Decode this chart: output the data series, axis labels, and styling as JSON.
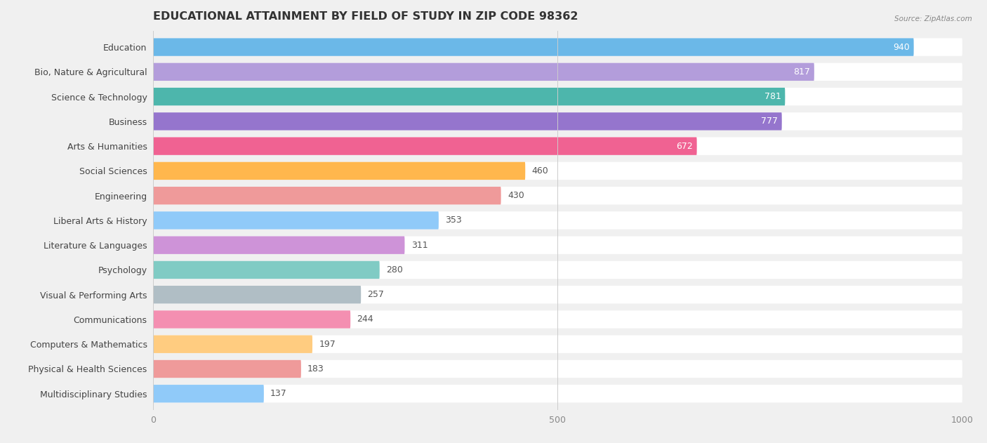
{
  "title": "EDUCATIONAL ATTAINMENT BY FIELD OF STUDY IN ZIP CODE 98362",
  "source": "Source: ZipAtlas.com",
  "categories": [
    "Education",
    "Bio, Nature & Agricultural",
    "Science & Technology",
    "Business",
    "Arts & Humanities",
    "Social Sciences",
    "Engineering",
    "Liberal Arts & History",
    "Literature & Languages",
    "Psychology",
    "Visual & Performing Arts",
    "Communications",
    "Computers & Mathematics",
    "Physical & Health Sciences",
    "Multidisciplinary Studies"
  ],
  "values": [
    940,
    817,
    781,
    777,
    672,
    460,
    430,
    353,
    311,
    280,
    257,
    244,
    197,
    183,
    137
  ],
  "bar_colors": [
    "#6bb8e8",
    "#b39ddb",
    "#4db6ac",
    "#9575cd",
    "#f06292",
    "#ffb74d",
    "#ef9a9a",
    "#90caf9",
    "#ce93d8",
    "#80cbc4",
    "#b0bec5",
    "#f48fb1",
    "#ffcc80",
    "#ef9a9a",
    "#90caf9"
  ],
  "xlim": [
    0,
    1000
  ],
  "xticks": [
    0,
    500,
    1000
  ],
  "background_color": "#f0f0f0",
  "bar_row_color": "#ffffff",
  "title_fontsize": 11.5,
  "label_fontsize": 9,
  "value_fontsize": 9
}
